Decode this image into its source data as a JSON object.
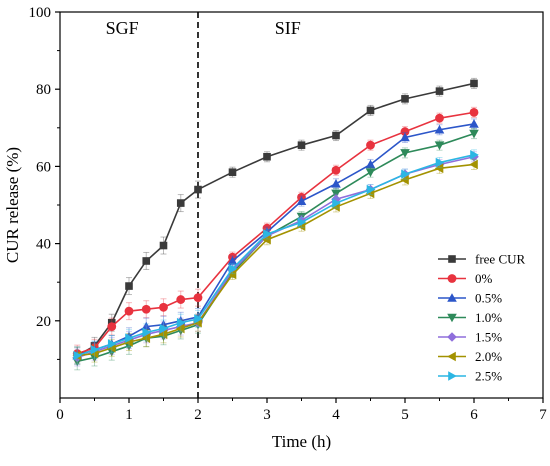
{
  "chart_data": {
    "type": "line",
    "xlabel": "Time (h)",
    "ylabel": "CUR release (%)",
    "xlim": [
      0,
      7
    ],
    "ylim": [
      0,
      100
    ],
    "xticks": [
      0,
      1,
      2,
      3,
      4,
      5,
      6,
      7
    ],
    "yticks": [
      20,
      40,
      60,
      80,
      100
    ],
    "grid": false,
    "legend_position": "lower-right",
    "divider_x": 2,
    "regions": [
      {
        "label": "SGF",
        "x": 0.9
      },
      {
        "label": "SIF",
        "x": 3.3
      }
    ],
    "x": [
      0.25,
      0.5,
      0.75,
      1,
      1.25,
      1.5,
      1.75,
      2,
      2.5,
      3,
      3.5,
      4,
      4.5,
      5,
      5.5,
      6
    ],
    "series": [
      {
        "name": "free CUR",
        "color": "#3a3a3a",
        "marker": "square",
        "values": [
          11,
          13.5,
          19.5,
          29,
          35.5,
          39.5,
          50.5,
          54,
          58.5,
          62.5,
          65.5,
          68,
          74.5,
          77.5,
          79.5,
          81.5
        ]
      },
      {
        "name": "0%",
        "color": "#e8333f",
        "marker": "circle",
        "values": [
          11.5,
          13,
          18.5,
          22.5,
          23,
          23.5,
          25.5,
          26,
          36.5,
          44,
          52,
          59,
          65.5,
          69,
          72.5,
          74
        ]
      },
      {
        "name": "0.5%",
        "color": "#2c56c9",
        "marker": "triangle-up",
        "values": [
          11,
          12.5,
          14,
          16,
          18.5,
          19,
          20,
          21,
          35.5,
          43,
          51,
          55.5,
          60.5,
          67.5,
          69.5,
          71
        ]
      },
      {
        "name": "1.0%",
        "color": "#2e8a5a",
        "marker": "triangle-down",
        "values": [
          9.5,
          10.5,
          12,
          13.5,
          15.5,
          16,
          17.5,
          19,
          32.5,
          42,
          47,
          53,
          58.5,
          63.5,
          65.5,
          68.5
        ]
      },
      {
        "name": "1.5%",
        "color": "#8f6fdc",
        "marker": "diamond",
        "values": [
          10.5,
          12,
          13.5,
          15,
          16.5,
          17.5,
          18.5,
          19.5,
          33,
          42,
          46,
          51.5,
          54,
          58,
          60.5,
          62.5
        ]
      },
      {
        "name": "2.0%",
        "color": "#a39200",
        "marker": "triangle-left",
        "values": [
          11,
          11.5,
          13,
          14.5,
          15.5,
          16.5,
          18,
          19.5,
          32,
          41,
          44.5,
          49.5,
          53,
          56.5,
          59.5,
          60.5
        ]
      },
      {
        "name": "2.5%",
        "color": "#2bb6e3",
        "marker": "triangle-right",
        "values": [
          11,
          12.5,
          14,
          15.5,
          17,
          18,
          19.5,
          20.5,
          33.5,
          42.5,
          45.5,
          50.5,
          54,
          58,
          61,
          63
        ]
      }
    ]
  }
}
